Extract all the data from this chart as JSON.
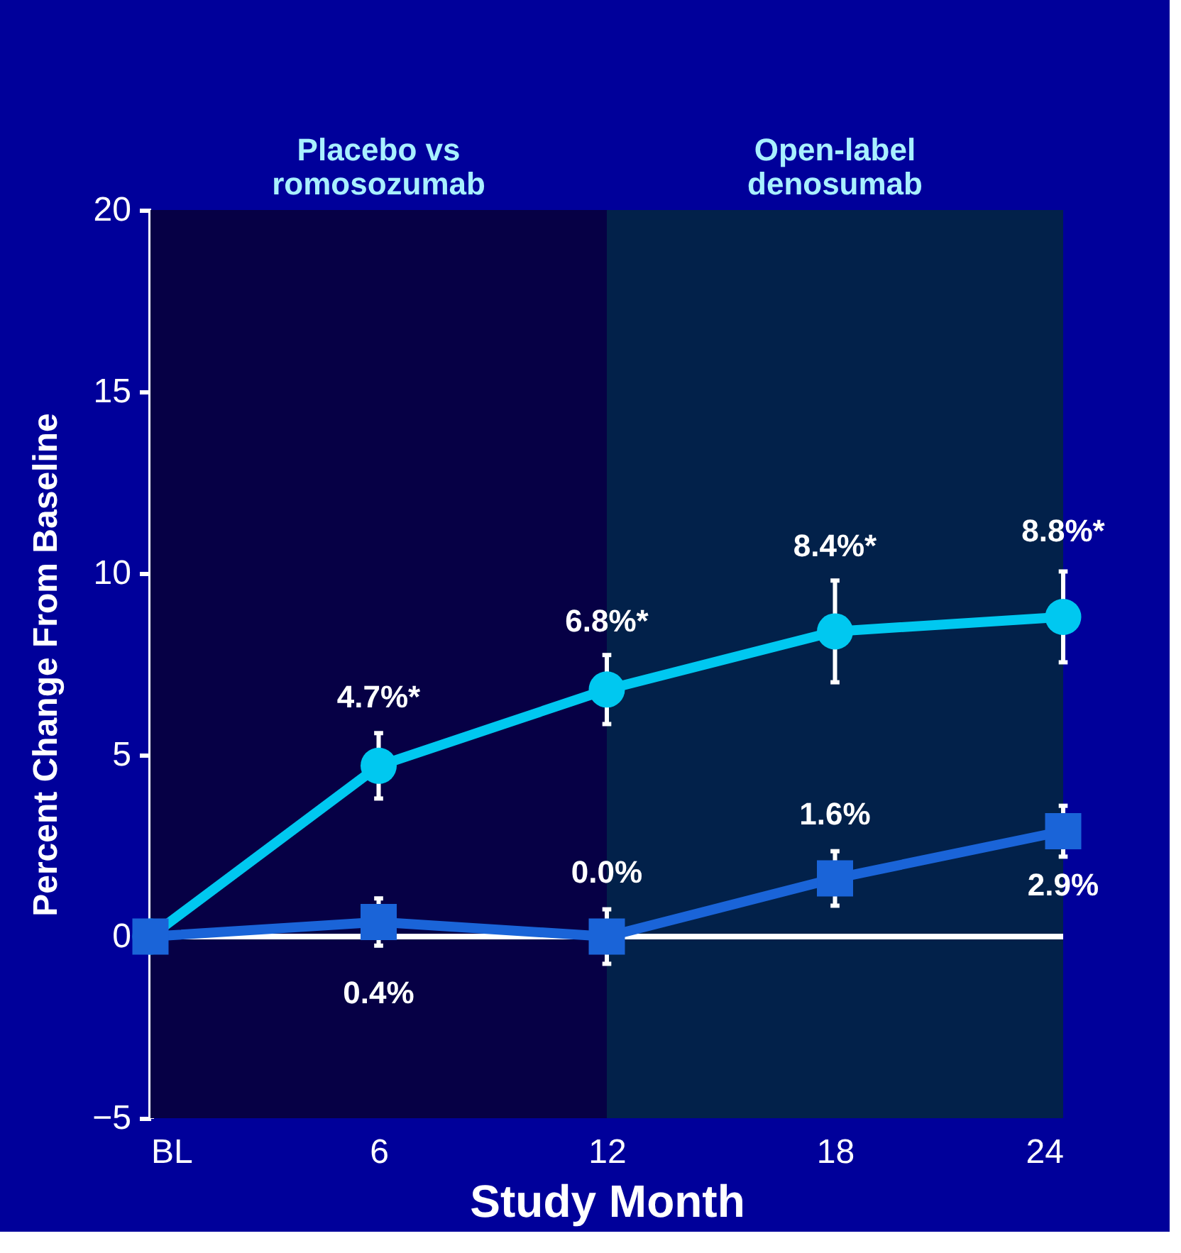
{
  "chart_data": {
    "type": "line",
    "xlabel": "Study Month",
    "ylabel": "Percent Change From Baseline",
    "x": [
      0,
      6,
      12,
      18,
      24
    ],
    "xlim": [
      0,
      24
    ],
    "xticks": [
      {
        "value": 0,
        "label": "BL"
      },
      6,
      12,
      18,
      24
    ],
    "ylim": [
      -5,
      20
    ],
    "yticks": [
      {
        "value": -5,
        "label": "−5"
      },
      0,
      5,
      10,
      15,
      20
    ],
    "grid": false,
    "line_style": "solid",
    "series": [
      {
        "color": "#00c8f0",
        "marker": "circle",
        "values": [
          0,
          4.7,
          6.8,
          8.4,
          8.8
        ],
        "errors": [
          null,
          0.9,
          0.95,
          1.4,
          1.25
        ],
        "value_labels": [
          null,
          "4.7%*",
          "6.8%*",
          "8.4%*",
          "8.8%*"
        ]
      },
      {
        "color": "#1a64d8",
        "marker": "square",
        "values": [
          0,
          0.4,
          0.0,
          1.6,
          2.9
        ],
        "errors": [
          null,
          0.65,
          0.75,
          0.75,
          0.7
        ],
        "value_labels": [
          null,
          "0.4%",
          "0.0%",
          "1.6%",
          "2.9%"
        ]
      }
    ],
    "bands": [
      {
        "axis": "x",
        "from": 0,
        "to": 12,
        "label": "Placebo vs\nromosozumab",
        "color": "#060045"
      },
      {
        "axis": "x",
        "from": 12,
        "to": 24,
        "label": "Open-label\ndenosumab",
        "color": "#02214a"
      }
    ],
    "ref_lines": [
      {
        "axis": "y",
        "value": 0,
        "color": "#ffffff"
      }
    ]
  }
}
